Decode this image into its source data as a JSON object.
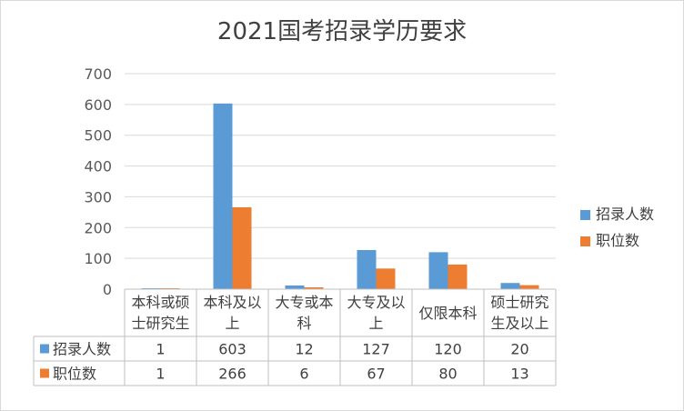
{
  "chart_data": {
    "type": "bar",
    "title": "2021国考招录学历要求",
    "categories": [
      {
        "line1": "本科或硕",
        "line2": "士研究生"
      },
      {
        "line1": "本科及以",
        "line2": "上"
      },
      {
        "line1": "大专或本",
        "line2": "科"
      },
      {
        "line1": "大专及以",
        "line2": "上"
      },
      {
        "line1": "仅限本科",
        "line2": ""
      },
      {
        "line1": "硕士研究",
        "line2": "生及以上"
      }
    ],
    "series": [
      {
        "name": "招录人数",
        "color": "#5B9BD5",
        "values": [
          1,
          603,
          12,
          127,
          120,
          20
        ]
      },
      {
        "name": "职位数",
        "color": "#ED7D31",
        "values": [
          1,
          266,
          6,
          67,
          80,
          13
        ]
      }
    ],
    "ylim": [
      0,
      700
    ],
    "yticks": [
      0,
      100,
      200,
      300,
      400,
      500,
      600,
      700
    ],
    "grid": true,
    "legend_position": "right",
    "data_table": true
  }
}
